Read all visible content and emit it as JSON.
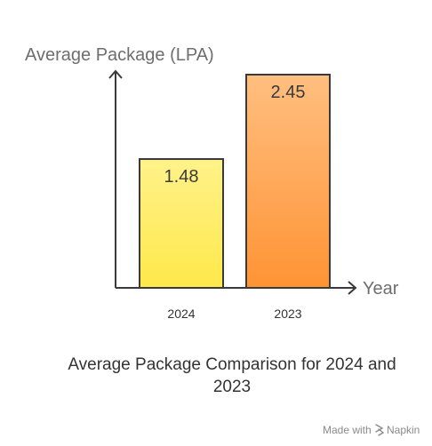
{
  "chart_data": {
    "type": "bar",
    "categories": [
      "2024",
      "2023"
    ],
    "values": [
      1.48,
      2.45
    ],
    "data_labels": [
      "1.48",
      "2.45"
    ],
    "title_lines": [
      "Average Package Comparison for 2024 and",
      "2023"
    ],
    "xlabel": "Year",
    "ylabel": "Average Package (LPA)",
    "ylim": [
      0,
      2.45
    ],
    "grid": false,
    "legend": "none",
    "bar_gradients": [
      {
        "top": "#fff28a",
        "bottom": "#ffe84a",
        "stroke": "#3a3a3a"
      },
      {
        "top": "#ffbf80",
        "bottom": "#ff9334",
        "stroke": "#3a3a3a"
      }
    ],
    "axis_color": "#3a3a3a"
  },
  "credit": {
    "text": "Made with",
    "brand": "Napkin"
  }
}
